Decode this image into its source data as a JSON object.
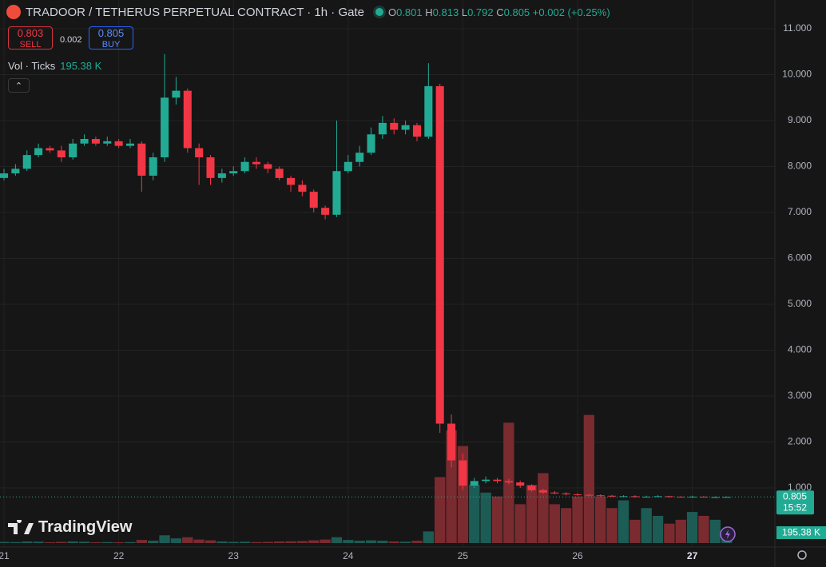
{
  "header": {
    "title": "TRADOOR / TETHERUS PERPETUAL CONTRACT · 1h · Gate",
    "ohlc": [
      {
        "label": "O",
        "value": "0.801"
      },
      {
        "label": "H",
        "value": "0.813"
      },
      {
        "label": "L",
        "value": "0.792"
      },
      {
        "label": "C",
        "value": "0.805"
      }
    ],
    "change": "+0.002 (+0.25%)"
  },
  "order": {
    "sell_price": "0.803",
    "sell_label": "SELL",
    "spread": "0.002",
    "buy_price": "0.805",
    "buy_label": "BUY"
  },
  "volume_legend": {
    "label": "Vol · Ticks",
    "value": "195.38 K"
  },
  "branding": "TradingView",
  "chart_data": {
    "type": "candlestick",
    "x": [
      21.0,
      21.1,
      21.2,
      21.3,
      21.4,
      21.5,
      21.6,
      21.7,
      21.8,
      21.9,
      22.0,
      22.1,
      22.2,
      22.3,
      22.4,
      22.5,
      22.6,
      22.7,
      22.8,
      22.9,
      23.0,
      23.1,
      23.2,
      23.3,
      23.4,
      23.5,
      23.6,
      23.7,
      23.8,
      23.9,
      24.0,
      24.1,
      24.2,
      24.3,
      24.4,
      24.5,
      24.6,
      24.7,
      24.8,
      24.9,
      25.0,
      25.1,
      25.2,
      25.3,
      25.4,
      25.5,
      25.6,
      25.7,
      25.8,
      25.9,
      26.0,
      26.1,
      26.2,
      26.3,
      26.4,
      26.5,
      26.6,
      26.7,
      26.8,
      26.9,
      27.0,
      27.1,
      27.2,
      27.3
    ],
    "open": [
      7.75,
      7.85,
      7.95,
      8.25,
      8.4,
      8.35,
      8.2,
      8.5,
      8.6,
      8.5,
      8.55,
      8.45,
      8.5,
      7.8,
      8.2,
      9.5,
      9.65,
      8.4,
      8.2,
      7.75,
      7.85,
      7.9,
      8.1,
      8.05,
      7.95,
      7.75,
      7.6,
      7.45,
      7.1,
      6.95,
      7.9,
      8.1,
      8.3,
      8.7,
      8.95,
      8.8,
      8.9,
      8.65,
      9.75,
      2.4,
      1.6,
      1.05,
      1.15,
      1.18,
      1.15,
      1.12,
      1.05,
      0.95,
      0.9,
      0.88,
      0.86,
      0.85,
      0.84,
      0.83,
      0.82,
      0.82,
      0.81,
      0.81,
      0.82,
      0.81,
      0.8,
      0.81,
      0.8,
      0.801
    ],
    "high": [
      7.95,
      8.05,
      8.35,
      8.5,
      8.45,
      8.45,
      8.6,
      8.7,
      8.65,
      8.65,
      8.6,
      8.6,
      8.55,
      8.3,
      10.45,
      9.95,
      9.7,
      8.5,
      8.25,
      7.95,
      8.0,
      8.2,
      8.2,
      8.1,
      8.0,
      7.8,
      7.7,
      7.5,
      7.15,
      9.0,
      8.25,
      8.45,
      8.85,
      9.1,
      9.05,
      9.0,
      8.95,
      10.25,
      9.8,
      2.6,
      1.75,
      1.22,
      1.25,
      1.22,
      1.2,
      1.16,
      1.08,
      0.98,
      0.93,
      0.91,
      0.89,
      0.87,
      0.86,
      0.85,
      0.84,
      0.84,
      0.83,
      0.84,
      0.83,
      0.82,
      0.83,
      0.82,
      0.815,
      0.813
    ],
    "low": [
      7.7,
      7.8,
      7.9,
      8.2,
      8.3,
      8.1,
      8.15,
      8.45,
      8.45,
      8.45,
      8.4,
      8.4,
      7.45,
      7.7,
      8.1,
      9.35,
      8.3,
      7.6,
      7.6,
      7.65,
      7.8,
      7.85,
      7.95,
      7.85,
      7.7,
      7.45,
      7.35,
      7.0,
      6.85,
      6.9,
      7.85,
      8.0,
      8.25,
      8.6,
      8.7,
      8.7,
      8.55,
      8.6,
      2.2,
      1.45,
      0.95,
      1.0,
      1.1,
      1.1,
      1.08,
      1.0,
      0.92,
      0.87,
      0.86,
      0.84,
      0.83,
      0.82,
      0.81,
      0.8,
      0.8,
      0.79,
      0.79,
      0.8,
      0.79,
      0.79,
      0.79,
      0.79,
      0.79,
      0.792
    ],
    "close": [
      7.85,
      7.95,
      8.25,
      8.4,
      8.35,
      8.2,
      8.5,
      8.6,
      8.5,
      8.55,
      8.45,
      8.5,
      7.8,
      8.2,
      9.5,
      9.65,
      8.4,
      8.2,
      7.75,
      7.85,
      7.9,
      8.1,
      8.05,
      7.95,
      7.75,
      7.6,
      7.45,
      7.1,
      6.95,
      7.9,
      8.1,
      8.3,
      8.7,
      8.95,
      8.8,
      8.9,
      8.65,
      9.75,
      2.4,
      1.6,
      1.05,
      1.15,
      1.18,
      1.15,
      1.12,
      1.05,
      0.95,
      0.9,
      0.88,
      0.86,
      0.85,
      0.84,
      0.83,
      0.82,
      0.82,
      0.81,
      0.81,
      0.82,
      0.81,
      0.8,
      0.81,
      0.8,
      0.801,
      0.805
    ],
    "volume": [
      30,
      25,
      40,
      35,
      20,
      30,
      40,
      35,
      20,
      25,
      20,
      25,
      80,
      60,
      200,
      120,
      150,
      90,
      70,
      40,
      30,
      35,
      25,
      30,
      40,
      45,
      50,
      70,
      90,
      150,
      80,
      60,
      70,
      60,
      40,
      35,
      60,
      300,
      1700,
      2900,
      2500,
      1500,
      1300,
      1200,
      3100,
      1000,
      1500,
      1800,
      1000,
      900,
      1200,
      3300,
      1200,
      900,
      1100,
      600,
      900,
      700,
      500,
      600,
      800,
      700,
      600,
      195.38
    ],
    "volume_label": "195.38 K",
    "last_price_label": "0.805",
    "countdown": "15:52",
    "up_color": "#22ab94",
    "down_color": "#f23645",
    "up_volume_color": "#1d5c55",
    "down_volume_color": "#7a2b30",
    "xlim": [
      20.965,
      27.72
    ],
    "xticks": [
      21,
      22,
      23,
      24,
      25,
      26,
      27
    ],
    "ylim": [
      -0.287,
      11.626
    ],
    "yticks": [
      {
        "value": 1,
        "label": "1.000"
      },
      {
        "value": 2,
        "label": "2.000"
      },
      {
        "value": 3,
        "label": "3.000"
      },
      {
        "value": 4,
        "label": "4.000"
      },
      {
        "value": 5,
        "label": "5.000"
      },
      {
        "value": 6,
        "label": "6.000"
      },
      {
        "value": 7,
        "label": "7.000"
      },
      {
        "value": 8,
        "label": "8.000"
      },
      {
        "value": 9,
        "label": "9.000"
      },
      {
        "value": 10,
        "label": "10.000"
      },
      {
        "value": 11,
        "label": "11.000"
      }
    ],
    "vlim": [
      0,
      3600
    ],
    "grid": true
  }
}
